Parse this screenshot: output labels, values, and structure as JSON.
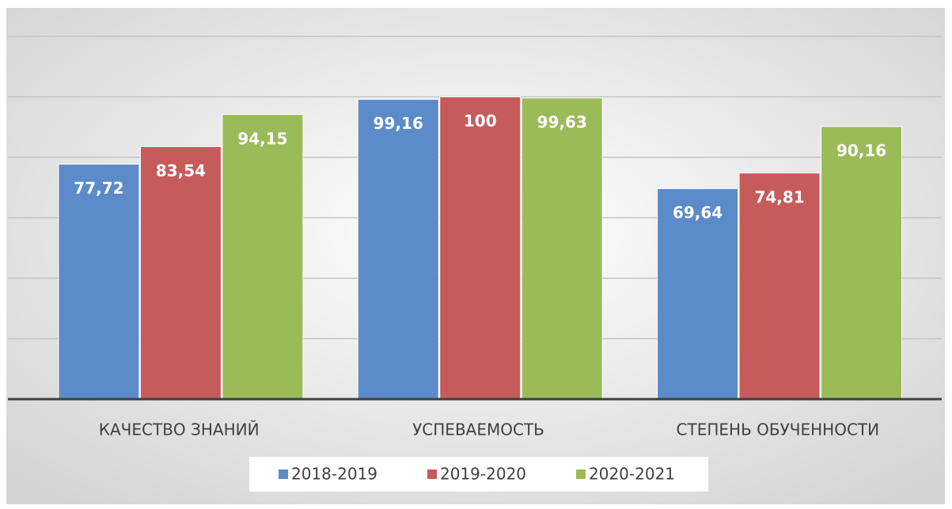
{
  "chart_data": {
    "type": "bar",
    "categories": [
      "КАЧЕСТВО ЗНАНИЙ",
      "УСПЕВАЕМОСТЬ",
      "СТЕПЕНЬ ОБУЧЕННОСТИ"
    ],
    "series": [
      {
        "name": "2018-2019",
        "color": "#5b8bc9",
        "values": [
          77.72,
          99.16,
          69.64
        ],
        "value_labels": [
          "77,72",
          "99,16",
          "69,64"
        ]
      },
      {
        "name": "2019-2020",
        "color": "#c65b5b",
        "values": [
          83.54,
          100,
          74.81
        ],
        "value_labels": [
          "83,54",
          "100",
          "74,81"
        ]
      },
      {
        "name": "2020-2021",
        "color": "#9bbb59",
        "values": [
          94.15,
          99.63,
          90.16
        ],
        "value_labels": [
          "94,15",
          "99,63",
          "90,16"
        ]
      }
    ],
    "ylim": [
      0,
      120
    ],
    "yticks": [
      0,
      20,
      40,
      60,
      80,
      100,
      120
    ],
    "grid": true,
    "legend": "bottom"
  }
}
